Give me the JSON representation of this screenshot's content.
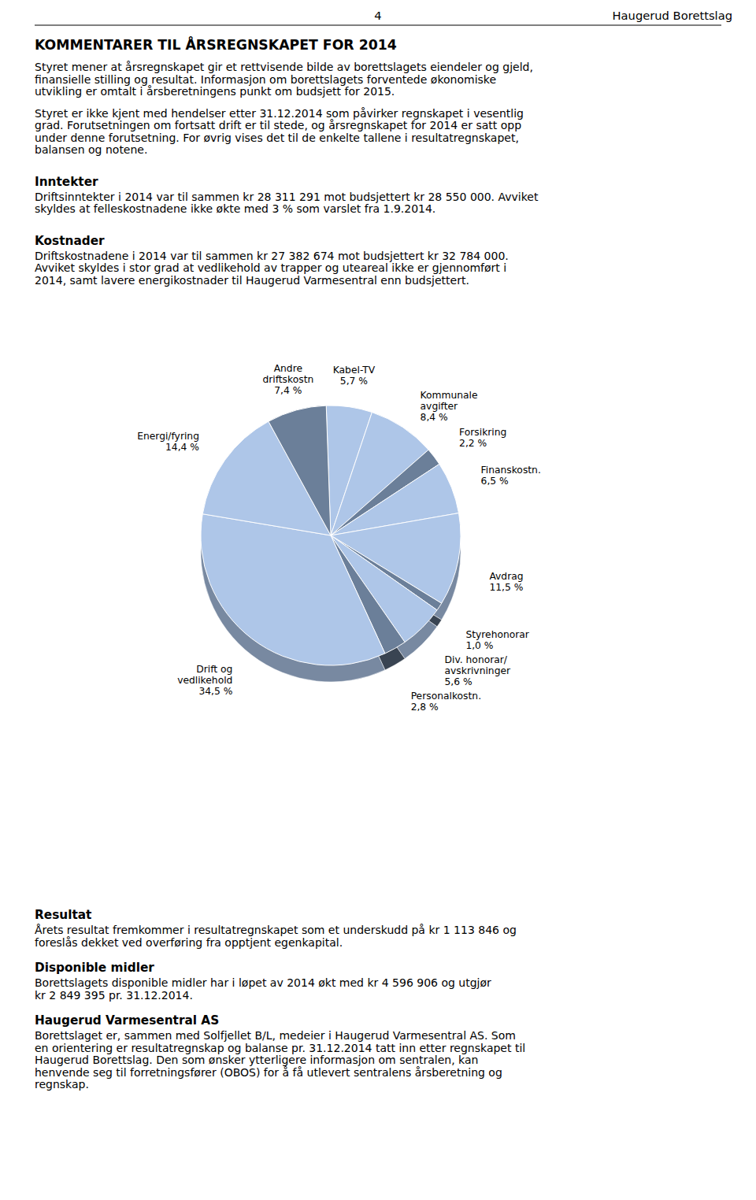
{
  "page": {
    "page_number": "4",
    "company_name": "Haugerud Borettslag",
    "title": "KOMMENTARER TIL ÅRSREGNSKAPET FOR 2014",
    "text_above": [
      {
        "lines": [
          "Styret mener at årsregnskapet gir et rettvisende bilde av borettslagets eiendeler og gjeld,",
          "finansielle stilling og resultat. Informasjon om borettslagets forventede økonomiske",
          "utvikling er omtalt i årsberetningens punkt om budsjett for 2015."
        ]
      },
      {
        "lines": [
          "Styret er ikke kjent med hendelser etter 31.12.2014 som påvirker regnskapet i vesentlig",
          "grad. Forutsetningen om fortsatt drift er til stede, og årsregnskapet for 2014 er satt opp",
          "under denne forutsetning. For øvrig vises det til de enkelte tallene i resultatregnskapet,",
          "balansen og notene."
        ]
      },
      {
        "heading": "Inntekter",
        "lines": [
          "Driftsinntekter i 2014 var til sammen kr 28 311 291 mot budsjettert kr 28 550 000. Avviket",
          "skyldes at felleskostnadene ikke økte med 3 % som varslet fra 1.9.2014."
        ]
      },
      {
        "heading": "Kostnader",
        "lines": [
          "Driftskostnadene i 2014 var til sammen kr 27 382 674 mot budsjettert kr 32 784 000.",
          "Avviket skyldes i stor grad at vedlikehold av trapper og uteareal ikke er gjennomført i",
          "2014, samt lavere energikostnader til Haugerud Varmesentral enn budsjettert."
        ]
      }
    ],
    "text_below": [
      {
        "heading": "Resultat",
        "lines": [
          "Årets resultat fremkommer i resultatregnskapet som et underskudd på kr 1 113 846 og",
          "foreslås dekket ved overføring fra opptjent egenkapital."
        ]
      },
      {
        "heading": "Disponible midler",
        "lines": [
          "Borettslagets disponible midler har i løpet av 2014 økt med kr 4 596 906 og utgjør",
          "kr 2 849 395 pr. 31.12.2014."
        ]
      },
      {
        "heading": "Haugerud Varmesentral AS",
        "lines": [
          "Borettslaget er, sammen med Solfjellet B/L, medeier i Haugerud Varmesentral AS. Som",
          "en orientering er resultatregnskap og balanse pr. 31.12.2014 tatt inn etter regnskapet til",
          "Haugerud Borettslag. Den som ønsker ytterligere informasjon om sentralen, kan",
          "henvende seg til forretningsfører (OBOS) for å få utlevert sentralens årsberetning og",
          "regnskap."
        ]
      }
    ]
  },
  "chart_data": {
    "type": "pie",
    "categories": [
      "Kabel-TV\n5,7 %",
      "Kommunale\navgifter\n8,4 %",
      "Forsikring\n2,2 %",
      "Finanskostn.\n6,5 %",
      "Avdrag\n11,5 %",
      "Styrehonorar\n1,0 %",
      "Div. honorar/\navskrivninger\n5,6 %",
      "Personalkostn.\n2,8 %",
      "Drift og\nvedlikehold\n34,5 %",
      "Energi/fyring\n14,4 %",
      "Andre\ndriftskostn\n7,4 %"
    ],
    "values": [
      5.7,
      8.4,
      2.2,
      6.5,
      11.5,
      1.0,
      5.6,
      2.8,
      34.5,
      14.4,
      7.4
    ],
    "colors": [
      "#aec6e8",
      "#aec6e8",
      "#6b7f99",
      "#aec6e8",
      "#aec6e8",
      "#6b7f99",
      "#aec6e8",
      "#6b7f99",
      "#aec6e8",
      "#aec6e8",
      "#6b7f99"
    ]
  }
}
